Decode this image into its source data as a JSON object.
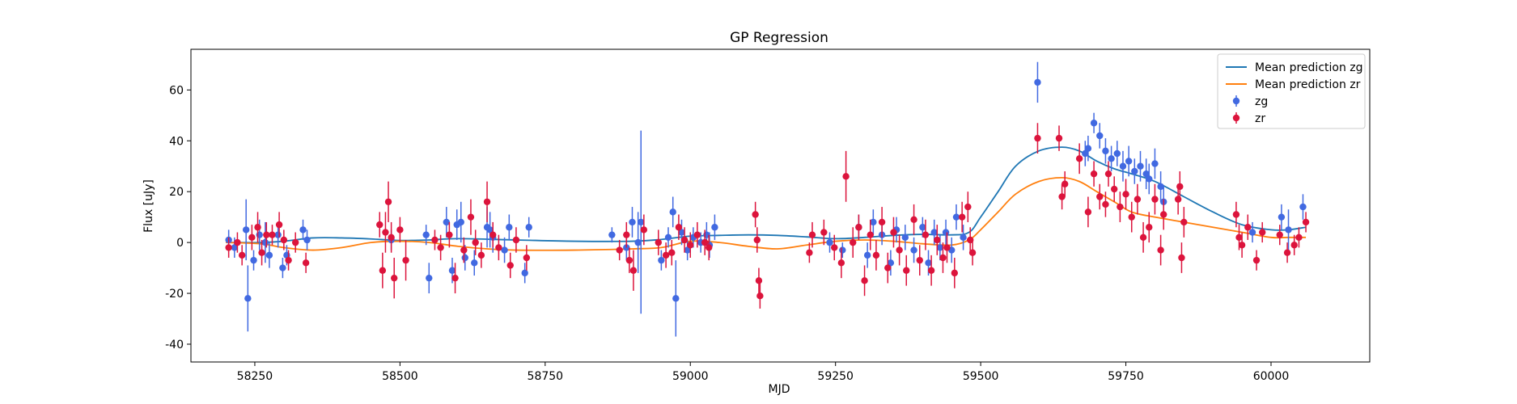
{
  "chart_data": {
    "type": "scatter",
    "title": "GP Regression",
    "xlabel": "MJD",
    "ylabel": "Flux [uJy]",
    "xlim": [
      58140,
      60170
    ],
    "ylim": [
      -47,
      76
    ],
    "xticks": [
      58250,
      58500,
      58750,
      59000,
      59250,
      59500,
      59750,
      60000
    ],
    "yticks": [
      -40,
      -20,
      0,
      20,
      40,
      60
    ],
    "legend_position": "top-right",
    "legend": [
      {
        "label": "Mean prediction zg",
        "kind": "line",
        "color": "#1f77b4"
      },
      {
        "label": "Mean prediction zr",
        "kind": "line",
        "color": "#ff7f0e"
      },
      {
        "label": "zg",
        "kind": "errorbar",
        "color": "#4169e1"
      },
      {
        "label": "zr",
        "kind": "errorbar",
        "color": "#dc143c"
      }
    ],
    "lines": [
      {
        "name": "Mean prediction zg",
        "color": "#1f77b4",
        "x": [
          58200,
          58260,
          58300,
          58350,
          58400,
          58450,
          58500,
          58550,
          58600,
          58700,
          58800,
          58900,
          58950,
          59000,
          59050,
          59100,
          59150,
          59200,
          59250,
          59300,
          59350,
          59400,
          59450,
          59480,
          59500,
          59530,
          59560,
          59600,
          59640,
          59670,
          59700,
          59730,
          59760,
          59800,
          59850,
          59900,
          59950,
          60000,
          60030,
          60060
        ],
        "y": [
          0,
          0,
          0.5,
          1.8,
          1.8,
          1.4,
          0.8,
          1.0,
          1.5,
          1.0,
          0.5,
          0.5,
          1.2,
          2.5,
          2.8,
          3.0,
          2.8,
          2.2,
          1.5,
          2.0,
          2.8,
          3.2,
          3.0,
          4.0,
          10.0,
          20.0,
          30.0,
          36.0,
          37.5,
          36.0,
          32.0,
          29.0,
          27.0,
          24.0,
          18.0,
          12.0,
          7.0,
          5.0,
          5.0,
          6.0
        ]
      },
      {
        "name": "Mean prediction zr",
        "color": "#ff7f0e",
        "x": [
          58200,
          58260,
          58300,
          58350,
          58400,
          58450,
          58500,
          58550,
          58600,
          58650,
          58700,
          58800,
          58900,
          58950,
          59000,
          59050,
          59100,
          59150,
          59200,
          59250,
          59300,
          59350,
          59400,
          59450,
          59480,
          59500,
          59530,
          59560,
          59600,
          59640,
          59670,
          59700,
          59730,
          59760,
          59800,
          59850,
          59900,
          59950,
          60000,
          60030,
          60060
        ],
        "y": [
          0,
          -0.5,
          -2.0,
          -3.0,
          -2.0,
          0.0,
          0.5,
          0.0,
          -1.5,
          -2.5,
          -3.0,
          -3.0,
          -2.5,
          -2.0,
          0.5,
          0.0,
          -1.5,
          -2.5,
          -1.0,
          0.5,
          1.0,
          0.5,
          -0.5,
          -1.0,
          1.0,
          5.0,
          12.0,
          19.0,
          24.0,
          25.5,
          24.0,
          20.0,
          16.0,
          12.0,
          10.0,
          8.0,
          6.0,
          4.0,
          2.0,
          2.0,
          2.0
        ]
      }
    ],
    "series": [
      {
        "name": "zg",
        "color": "#4169e1",
        "points": [
          [
            58205,
            1,
            4
          ],
          [
            58215,
            -2,
            4
          ],
          [
            58235,
            5,
            12
          ],
          [
            58238,
            -22,
            13
          ],
          [
            58248,
            -7,
            4
          ],
          [
            58258,
            3,
            6
          ],
          [
            58268,
            0,
            8
          ],
          [
            58275,
            -5,
            5
          ],
          [
            58290,
            3,
            5
          ],
          [
            58298,
            -10,
            4
          ],
          [
            58305,
            -5,
            4
          ],
          [
            58333,
            5,
            4
          ],
          [
            58340,
            1,
            4
          ],
          [
            58485,
            1,
            4
          ],
          [
            58545,
            3,
            4
          ],
          [
            58550,
            -14,
            6
          ],
          [
            58580,
            8,
            6
          ],
          [
            58590,
            -11,
            5
          ],
          [
            58598,
            7,
            6
          ],
          [
            58605,
            8,
            8
          ],
          [
            58612,
            -6,
            5
          ],
          [
            58628,
            -8,
            5
          ],
          [
            58650,
            6,
            8
          ],
          [
            58655,
            5,
            7
          ],
          [
            58660,
            2,
            6
          ],
          [
            58680,
            -3,
            5
          ],
          [
            58688,
            6,
            5
          ],
          [
            58715,
            -12,
            4
          ],
          [
            58722,
            6,
            4
          ],
          [
            58865,
            3,
            3
          ],
          [
            58890,
            -2,
            5
          ],
          [
            58900,
            8,
            6
          ],
          [
            58910,
            0,
            12
          ],
          [
            58915,
            8,
            36
          ],
          [
            58950,
            -7,
            4
          ],
          [
            58962,
            2,
            4
          ],
          [
            58970,
            12,
            6
          ],
          [
            58975,
            -22,
            15
          ],
          [
            58985,
            4,
            5
          ],
          [
            58995,
            -3,
            4
          ],
          [
            59005,
            2,
            4
          ],
          [
            59018,
            0,
            4
          ],
          [
            59028,
            3,
            5
          ],
          [
            59033,
            -1,
            5
          ],
          [
            59042,
            6,
            5
          ],
          [
            59240,
            0,
            4
          ],
          [
            59262,
            -3,
            3
          ],
          [
            59290,
            6,
            5
          ],
          [
            59305,
            -5,
            5
          ],
          [
            59315,
            8,
            5
          ],
          [
            59330,
            3,
            4
          ],
          [
            59345,
            -8,
            5
          ],
          [
            59355,
            5,
            5
          ],
          [
            59370,
            2,
            5
          ],
          [
            59385,
            -3,
            5
          ],
          [
            59400,
            6,
            4
          ],
          [
            59410,
            -8,
            5
          ],
          [
            59420,
            4,
            5
          ],
          [
            59430,
            -2,
            5
          ],
          [
            59440,
            4,
            5
          ],
          [
            59450,
            -3,
            5
          ],
          [
            59458,
            10,
            5
          ],
          [
            59470,
            2,
            5
          ],
          [
            59598,
            63,
            8
          ],
          [
            59680,
            35,
            5
          ],
          [
            59685,
            37,
            5
          ],
          [
            59695,
            47,
            4
          ],
          [
            59705,
            42,
            5
          ],
          [
            59715,
            36,
            5
          ],
          [
            59725,
            33,
            5
          ],
          [
            59735,
            35,
            5
          ],
          [
            59745,
            30,
            6
          ],
          [
            59755,
            32,
            6
          ],
          [
            59765,
            28,
            5
          ],
          [
            59775,
            30,
            6
          ],
          [
            59785,
            27,
            6
          ],
          [
            59790,
            25,
            6
          ],
          [
            59800,
            31,
            6
          ],
          [
            59810,
            22,
            6
          ],
          [
            59815,
            16,
            6
          ],
          [
            59968,
            4,
            4
          ],
          [
            60018,
            10,
            5
          ],
          [
            60030,
            5,
            8
          ],
          [
            60055,
            14,
            5
          ]
        ]
      },
      {
        "name": "zr",
        "color": "#dc143c",
        "points": [
          [
            58205,
            -2,
            4
          ],
          [
            58220,
            0,
            4
          ],
          [
            58228,
            -5,
            4
          ],
          [
            58245,
            2,
            5
          ],
          [
            58255,
            6,
            6
          ],
          [
            58262,
            -4,
            5
          ],
          [
            58270,
            3,
            5
          ],
          [
            58280,
            3,
            4
          ],
          [
            58292,
            7,
            5
          ],
          [
            58300,
            1,
            4
          ],
          [
            58308,
            -7,
            4
          ],
          [
            58320,
            0,
            4
          ],
          [
            58338,
            -8,
            4
          ],
          [
            58465,
            7,
            5
          ],
          [
            58470,
            -11,
            7
          ],
          [
            58475,
            4,
            8
          ],
          [
            58480,
            16,
            8
          ],
          [
            58485,
            2,
            6
          ],
          [
            58490,
            -14,
            8
          ],
          [
            58500,
            5,
            5
          ],
          [
            58510,
            -7,
            8
          ],
          [
            58560,
            1,
            4
          ],
          [
            58570,
            -2,
            5
          ],
          [
            58585,
            3,
            5
          ],
          [
            58595,
            -14,
            6
          ],
          [
            58610,
            -3,
            5
          ],
          [
            58622,
            10,
            7
          ],
          [
            58630,
            0,
            5
          ],
          [
            58640,
            -5,
            5
          ],
          [
            58650,
            16,
            8
          ],
          [
            58660,
            3,
            5
          ],
          [
            58670,
            -2,
            5
          ],
          [
            58690,
            -9,
            5
          ],
          [
            58700,
            1,
            5
          ],
          [
            58718,
            -6,
            5
          ],
          [
            58878,
            -3,
            4
          ],
          [
            58890,
            3,
            5
          ],
          [
            58895,
            -7,
            5
          ],
          [
            58902,
            -11,
            8
          ],
          [
            58920,
            5,
            6
          ],
          [
            58945,
            0,
            5
          ],
          [
            58958,
            -5,
            5
          ],
          [
            58968,
            -4,
            5
          ],
          [
            58980,
            6,
            5
          ],
          [
            58990,
            1,
            5
          ],
          [
            59000,
            -1,
            5
          ],
          [
            59012,
            3,
            5
          ],
          [
            59025,
            0,
            5
          ],
          [
            59032,
            -2,
            5
          ],
          [
            59112,
            11,
            5
          ],
          [
            59115,
            1,
            5
          ],
          [
            59118,
            -15,
            5
          ],
          [
            59120,
            -21,
            5
          ],
          [
            59205,
            -4,
            4
          ],
          [
            59210,
            3,
            5
          ],
          [
            59230,
            4,
            5
          ],
          [
            59248,
            -2,
            5
          ],
          [
            59260,
            -8,
            6
          ],
          [
            59268,
            26,
            10
          ],
          [
            59280,
            0,
            6
          ],
          [
            59290,
            6,
            5
          ],
          [
            59300,
            -15,
            6
          ],
          [
            59310,
            3,
            6
          ],
          [
            59320,
            -5,
            6
          ],
          [
            59330,
            8,
            6
          ],
          [
            59340,
            -10,
            6
          ],
          [
            59350,
            4,
            6
          ],
          [
            59360,
            -3,
            6
          ],
          [
            59372,
            -11,
            6
          ],
          [
            59385,
            9,
            6
          ],
          [
            59395,
            -7,
            6
          ],
          [
            59405,
            3,
            6
          ],
          [
            59415,
            -11,
            6
          ],
          [
            59425,
            1,
            6
          ],
          [
            59435,
            -6,
            6
          ],
          [
            59442,
            -2,
            6
          ],
          [
            59455,
            -12,
            6
          ],
          [
            59468,
            10,
            6
          ],
          [
            59478,
            14,
            6
          ],
          [
            59482,
            1,
            5
          ],
          [
            59486,
            -4,
            5
          ],
          [
            59598,
            41,
            6
          ],
          [
            59635,
            41,
            5
          ],
          [
            59640,
            18,
            5
          ],
          [
            59645,
            23,
            5
          ],
          [
            59670,
            33,
            6
          ],
          [
            59685,
            12,
            6
          ],
          [
            59695,
            27,
            5
          ],
          [
            59705,
            18,
            5
          ],
          [
            59715,
            15,
            5
          ],
          [
            59720,
            27,
            5
          ],
          [
            59730,
            21,
            5
          ],
          [
            59740,
            14,
            6
          ],
          [
            59750,
            19,
            6
          ],
          [
            59760,
            10,
            6
          ],
          [
            59770,
            17,
            6
          ],
          [
            59780,
            2,
            6
          ],
          [
            59790,
            6,
            6
          ],
          [
            59800,
            17,
            6
          ],
          [
            59810,
            -3,
            6
          ],
          [
            59815,
            11,
            6
          ],
          [
            59840,
            17,
            6
          ],
          [
            59843,
            22,
            6
          ],
          [
            59846,
            -6,
            6
          ],
          [
            59850,
            8,
            6
          ],
          [
            59940,
            11,
            5
          ],
          [
            59945,
            2,
            5
          ],
          [
            59950,
            -1,
            5
          ],
          [
            59960,
            6,
            5
          ],
          [
            59975,
            -7,
            4
          ],
          [
            59985,
            4,
            4
          ],
          [
            60015,
            3,
            4
          ],
          [
            60028,
            -4,
            4
          ],
          [
            60040,
            -1,
            4
          ],
          [
            60048,
            2,
            4
          ],
          [
            60060,
            8,
            4
          ]
        ]
      }
    ]
  }
}
